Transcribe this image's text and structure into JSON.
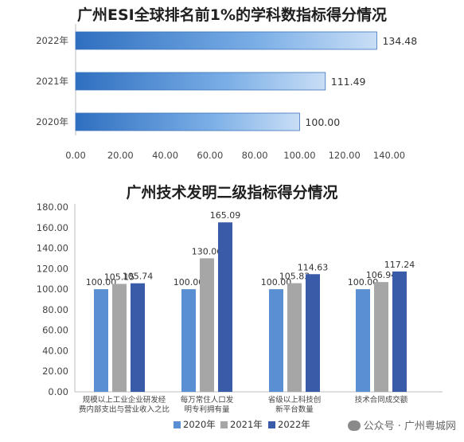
{
  "chart_data": [
    {
      "type": "bar",
      "orientation": "horizontal",
      "title": "广州ESI全球排名前1%的学科数指标得分情况",
      "categories": [
        "2022年",
        "2021年",
        "2020年"
      ],
      "values": [
        134.48,
        111.49,
        100.0
      ],
      "value_labels": [
        "134.48",
        "111.49",
        "100.00"
      ],
      "xlim": [
        0,
        140
      ],
      "x_ticks": [
        "0.00",
        "20.00",
        "40.00",
        "60.00",
        "80.00",
        "100.00",
        "120.00",
        "140.00"
      ],
      "grid": false,
      "bar_color": "#4f8bd0"
    },
    {
      "type": "bar",
      "title": "广州技术发明二级指标得分情况",
      "categories": [
        [
          "规模以上工业企业研发经",
          "费内部支出与营业收入之比"
        ],
        [
          "每万常住人口发",
          "明专利拥有量"
        ],
        [
          "省级以上科技创",
          "新平台数量"
        ],
        [
          "技术合同成交额"
        ]
      ],
      "series": [
        {
          "name": "2020年",
          "values": [
            100.0,
            100.0,
            100.0,
            100.0
          ],
          "labels": [
            "100.00",
            "100.00",
            "100.00",
            "100.00"
          ],
          "color": "#5b8fd4"
        },
        {
          "name": "2021年",
          "values": [
            105.15,
            130.06,
            105.83,
            106.94
          ],
          "labels": [
            "105.15",
            "130.06",
            "105.83",
            "106.94"
          ],
          "color": "#a6a6a6"
        },
        {
          "name": "2022年",
          "values": [
            105.74,
            165.09,
            114.63,
            117.24
          ],
          "labels": [
            "105.74",
            "165.09",
            "114.63",
            "117.24"
          ],
          "color": "#3a5ca8"
        }
      ],
      "ylim": [
        0,
        180
      ],
      "y_ticks": [
        "0.00",
        "20.00",
        "40.00",
        "60.00",
        "80.00",
        "100.00",
        "120.00",
        "140.00",
        "160.00",
        "180.00"
      ],
      "grid": false,
      "legend_position": "bottom"
    }
  ],
  "watermark": "公众号 · 广州粤城网"
}
